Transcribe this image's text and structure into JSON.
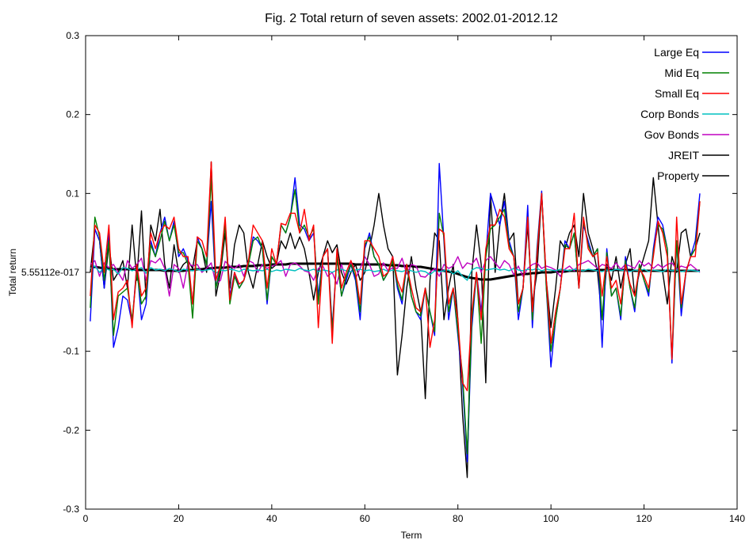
{
  "chart_data": {
    "type": "line",
    "title": "Fig. 2  Total return of seven assets: 2002.01-2012.12",
    "xlabel": "Term",
    "ylabel": "Total return",
    "xlim": [
      0,
      140
    ],
    "ylim": [
      -0.3,
      0.3
    ],
    "x_ticks": [
      0,
      20,
      40,
      60,
      80,
      100,
      120,
      140
    ],
    "y_ticks": [
      -0.3,
      -0.2,
      -0.1,
      0,
      0.1,
      0.2,
      0.3
    ],
    "x_tick_labels": [
      "0",
      "20",
      "40",
      "60",
      "80",
      "100",
      "120",
      "140"
    ],
    "y_tick_labels": [
      "-0.3",
      "-0.2",
      "-0.1",
      "5.55112e-017",
      "0.1",
      "0.2",
      "0.3"
    ],
    "grid": false,
    "legend_position": "top-right",
    "x": [
      1,
      2,
      3,
      4,
      5,
      6,
      7,
      8,
      9,
      10,
      11,
      12,
      13,
      14,
      15,
      16,
      17,
      18,
      19,
      20,
      21,
      22,
      23,
      24,
      25,
      26,
      27,
      28,
      29,
      30,
      31,
      32,
      33,
      34,
      35,
      36,
      37,
      38,
      39,
      40,
      41,
      42,
      43,
      44,
      45,
      46,
      47,
      48,
      49,
      50,
      51,
      52,
      53,
      54,
      55,
      56,
      57,
      58,
      59,
      60,
      61,
      62,
      63,
      64,
      65,
      66,
      67,
      68,
      69,
      70,
      71,
      72,
      73,
      74,
      75,
      76,
      77,
      78,
      79,
      80,
      81,
      82,
      83,
      84,
      85,
      86,
      87,
      88,
      89,
      90,
      91,
      92,
      93,
      94,
      95,
      96,
      97,
      98,
      99,
      100,
      101,
      102,
      103,
      104,
      105,
      106,
      107,
      108,
      109,
      110,
      111,
      112,
      113,
      114,
      115,
      116,
      117,
      118,
      119,
      120,
      121,
      122,
      123,
      124,
      125,
      126,
      127,
      128,
      129,
      130,
      131,
      132
    ],
    "series": [
      {
        "name": "Large Eq",
        "color": "#0000ff",
        "values": [
          -0.062,
          0.055,
          0.04,
          -0.02,
          0.05,
          -0.095,
          -0.07,
          -0.03,
          -0.035,
          -0.065,
          0.01,
          -0.06,
          -0.04,
          0.04,
          0.02,
          0.05,
          0.07,
          0.04,
          0.065,
          0.02,
          0.03,
          0.015,
          -0.04,
          0.045,
          0.03,
          0.01,
          0.09,
          -0.02,
          0.01,
          0.065,
          -0.03,
          0.0,
          -0.02,
          -0.01,
          0.01,
          0.045,
          0.04,
          0.03,
          -0.04,
          0.02,
          0.01,
          0.06,
          0.05,
          0.07,
          0.12,
          0.06,
          0.055,
          0.04,
          0.05,
          -0.03,
          0.02,
          0.03,
          -0.07,
          0.02,
          -0.03,
          -0.01,
          0.01,
          -0.01,
          -0.06,
          0.03,
          0.05,
          0.02,
          0.01,
          -0.01,
          0.0,
          0.02,
          -0.02,
          -0.04,
          0.01,
          -0.03,
          -0.05,
          -0.06,
          -0.02,
          -0.05,
          -0.08,
          0.138,
          0.04,
          -0.06,
          -0.02,
          -0.08,
          -0.14,
          -0.24,
          -0.07,
          0.0,
          -0.05,
          0.02,
          0.1,
          0.08,
          0.06,
          0.09,
          0.04,
          0.02,
          -0.06,
          -0.02,
          0.085,
          -0.07,
          0.03,
          0.103,
          -0.02,
          -0.12,
          -0.06,
          -0.02,
          0.04,
          0.03,
          0.05,
          -0.02,
          0.06,
          0.04,
          0.02,
          0.03,
          -0.095,
          0.03,
          -0.03,
          -0.02,
          -0.06,
          0.02,
          -0.02,
          -0.05,
          0.01,
          -0.01,
          -0.03,
          0.03,
          0.07,
          0.06,
          0.03,
          -0.115,
          0.04,
          -0.055,
          0.0,
          0.02,
          0.04,
          0.1
        ]
      },
      {
        "name": "Mid Eq",
        "color": "#008000",
        "values": [
          -0.045,
          0.07,
          0.045,
          -0.01,
          0.04,
          -0.08,
          -0.03,
          -0.025,
          -0.02,
          -0.06,
          0.0,
          -0.04,
          -0.03,
          0.035,
          0.02,
          0.04,
          0.065,
          0.04,
          0.06,
          0.025,
          0.025,
          0.01,
          -0.058,
          0.04,
          0.03,
          0.01,
          0.12,
          -0.02,
          0.005,
          0.06,
          -0.04,
          -0.005,
          -0.02,
          -0.01,
          0.01,
          0.04,
          0.045,
          0.03,
          -0.035,
          0.02,
          0.01,
          0.06,
          0.05,
          0.07,
          0.105,
          0.05,
          0.06,
          0.045,
          0.055,
          -0.04,
          0.02,
          0.03,
          -0.075,
          0.02,
          -0.03,
          -0.005,
          0.01,
          -0.005,
          -0.05,
          0.035,
          0.045,
          0.02,
          0.01,
          -0.01,
          0.0,
          0.015,
          -0.015,
          -0.035,
          0.01,
          -0.03,
          -0.05,
          -0.055,
          -0.02,
          -0.05,
          -0.075,
          0.075,
          0.045,
          -0.05,
          -0.02,
          -0.075,
          -0.13,
          -0.23,
          -0.06,
          0.0,
          -0.09,
          0.02,
          0.055,
          0.06,
          0.07,
          0.08,
          0.035,
          0.02,
          -0.05,
          -0.02,
          0.07,
          -0.06,
          0.025,
          0.1,
          -0.02,
          -0.1,
          -0.06,
          -0.02,
          0.035,
          0.03,
          0.05,
          -0.02,
          0.065,
          0.035,
          0.02,
          0.03,
          -0.06,
          0.025,
          -0.03,
          -0.02,
          -0.055,
          0.015,
          -0.02,
          -0.045,
          0.01,
          -0.01,
          -0.025,
          0.025,
          0.06,
          0.055,
          0.03,
          -0.11,
          0.04,
          -0.045,
          0.0,
          0.02,
          0.03,
          0.09
        ]
      },
      {
        "name": "Small Eq",
        "color": "#ff0000",
        "values": [
          -0.03,
          0.06,
          0.05,
          0.0,
          0.06,
          -0.06,
          -0.025,
          -0.02,
          -0.01,
          -0.07,
          0.01,
          -0.03,
          -0.02,
          0.05,
          0.03,
          0.05,
          0.06,
          0.055,
          0.07,
          0.03,
          0.02,
          0.02,
          -0.04,
          0.045,
          0.04,
          0.02,
          0.14,
          -0.01,
          0.01,
          0.07,
          -0.035,
          0.0,
          -0.015,
          -0.01,
          0.015,
          0.06,
          0.05,
          0.04,
          -0.02,
          0.03,
          0.01,
          0.062,
          0.06,
          0.075,
          0.075,
          0.05,
          0.08,
          0.04,
          0.06,
          -0.07,
          0.02,
          0.03,
          -0.09,
          0.03,
          -0.02,
          0.0,
          0.015,
          0.0,
          -0.04,
          0.04,
          0.04,
          0.03,
          0.02,
          -0.005,
          0.0,
          0.02,
          -0.01,
          -0.025,
          0.01,
          -0.02,
          -0.045,
          -0.05,
          -0.02,
          -0.095,
          -0.06,
          0.055,
          0.05,
          -0.04,
          -0.02,
          -0.06,
          -0.14,
          -0.15,
          -0.05,
          0.0,
          -0.06,
          0.03,
          0.06,
          0.06,
          0.08,
          0.07,
          0.03,
          0.02,
          -0.04,
          -0.02,
          0.07,
          -0.05,
          0.02,
          0.1,
          -0.01,
          -0.09,
          -0.05,
          -0.02,
          0.03,
          0.03,
          0.075,
          -0.02,
          0.07,
          0.03,
          0.02,
          0.025,
          -0.03,
          0.02,
          -0.02,
          -0.01,
          -0.04,
          0.01,
          -0.015,
          -0.03,
          0.005,
          -0.005,
          -0.02,
          0.02,
          0.065,
          0.05,
          0.02,
          -0.11,
          0.07,
          -0.04,
          0.0,
          0.02,
          0.02,
          0.09
        ]
      },
      {
        "name": "Corp Bonds",
        "color": "#00c0c0",
        "values": [
          0.005,
          0.008,
          0.0,
          0.006,
          0.003,
          0.004,
          -0.002,
          0.006,
          0.005,
          0.002,
          0.004,
          0.006,
          -0.001,
          0.006,
          0.003,
          0.004,
          0.002,
          0.005,
          0.003,
          0.001,
          0.004,
          0.003,
          0.002,
          0.004,
          0.002,
          0.003,
          0.004,
          -0.001,
          0.003,
          0.002,
          0.004,
          0.003,
          0.001,
          0.004,
          0.003,
          0.002,
          0.003,
          0.002,
          0.004,
          0.001,
          0.003,
          0.002,
          0.004,
          0.003,
          0.002,
          0.005,
          0.003,
          0.002,
          0.004,
          0.001,
          0.003,
          0.002,
          0.0,
          0.003,
          0.004,
          0.002,
          0.001,
          0.003,
          0.004,
          0.002,
          0.003,
          0.001,
          0.002,
          0.004,
          0.001,
          0.003,
          0.002,
          0.001,
          0.003,
          0.002,
          0.0,
          0.002,
          0.001,
          -0.003,
          0.002,
          0.001,
          0.002,
          0.003,
          -0.002,
          0.002,
          -0.005,
          -0.01,
          0.003,
          0.006,
          0.005,
          0.003,
          0.004,
          0.005,
          0.003,
          0.004,
          0.002,
          0.005,
          0.003,
          0.002,
          0.004,
          0.003,
          0.005,
          0.002,
          0.004,
          0.003,
          0.002,
          0.004,
          0.003,
          0.002,
          0.004,
          0.003,
          0.002,
          0.004,
          0.003,
          0.002,
          0.001,
          0.003,
          0.002,
          0.004,
          0.003,
          0.002,
          0.001,
          0.003,
          0.002,
          0.004,
          0.001,
          0.003,
          0.002,
          0.001,
          0.004,
          0.002,
          0.003,
          0.001,
          0.002,
          0.003,
          0.002,
          0.001
        ]
      },
      {
        "name": "Gov Bonds",
        "color": "#c000c0",
        "values": [
          0.01,
          0.015,
          -0.005,
          0.012,
          0.006,
          0.01,
          0.0,
          -0.01,
          0.015,
          0.005,
          0.01,
          0.018,
          -0.01,
          0.015,
          0.012,
          0.018,
          0.005,
          -0.03,
          0.01,
          0.005,
          -0.02,
          0.012,
          0.008,
          0.01,
          0.0,
          0.005,
          0.012,
          -0.015,
          -0.01,
          0.014,
          0.008,
          0.005,
          0.01,
          -0.005,
          0.015,
          0.012,
          0.0,
          0.01,
          0.005,
          0.008,
          0.01,
          0.015,
          -0.005,
          0.01,
          0.012,
          0.008,
          0.002,
          0.0,
          -0.01,
          0.005,
          0.008,
          -0.005,
          0.0,
          -0.015,
          0.01,
          -0.01,
          0.015,
          -0.008,
          0.005,
          0.02,
          0.01,
          -0.005,
          -0.002,
          0.012,
          0.002,
          0.006,
          0.005,
          0.018,
          -0.002,
          0.01,
          0.008,
          -0.005,
          -0.006,
          0.0,
          0.005,
          -0.005,
          0.01,
          0.005,
          0.008,
          0.02,
          0.005,
          0.012,
          0.01,
          0.018,
          0.0,
          0.015,
          0.02,
          0.012,
          0.005,
          0.015,
          0.01,
          -0.003,
          0.008,
          -0.005,
          0.005,
          0.01,
          0.012,
          0.005,
          0.008,
          0.006,
          0.003,
          -0.005,
          0.004,
          0.008,
          0.002,
          0.01,
          0.012,
          0.015,
          0.01,
          0.005,
          0.01,
          0.008,
          0.005,
          0.012,
          0.004,
          0.01,
          0.008,
          0.005,
          0.015,
          0.008,
          0.012,
          0.005,
          0.01,
          0.006,
          0.01,
          0.012,
          0.004,
          0.008,
          0.006,
          0.01,
          0.005,
          0.0
        ]
      },
      {
        "name": "JREIT",
        "color": "#000000",
        "values": [
          0.0,
          0.055,
          0.04,
          -0.02,
          0.035,
          -0.01,
          0.0,
          0.015,
          -0.02,
          0.06,
          -0.01,
          0.078,
          -0.035,
          0.06,
          0.04,
          0.08,
          0.01,
          -0.02,
          0.035,
          0.0,
          0.01,
          0.015,
          0.005,
          0.04,
          0.03,
          0.0,
          0.14,
          -0.03,
          0.0,
          0.05,
          -0.02,
          0.035,
          0.06,
          0.05,
          0.0,
          -0.02,
          0.01,
          0.04,
          0.02,
          0.005,
          0.01,
          0.04,
          0.03,
          0.05,
          0.03,
          0.045,
          0.03,
          0.0,
          -0.035,
          0.0,
          0.02,
          0.04,
          0.025,
          0.035,
          0.0,
          -0.015,
          0.0,
          0.01,
          -0.01,
          0.0,
          0.03,
          0.06,
          0.1,
          0.06,
          0.03,
          0.02,
          -0.13,
          -0.08,
          -0.02,
          0.02,
          -0.02,
          -0.05,
          -0.16,
          -0.01,
          0.05,
          0.04,
          -0.06,
          -0.02,
          0.01,
          -0.06,
          -0.18,
          -0.26,
          0.0,
          0.06,
          0.01,
          -0.14,
          0.1,
          0.0,
          0.06,
          0.1,
          0.04,
          0.05,
          -0.04,
          -0.02,
          0.06,
          -0.04,
          0.0,
          0.1,
          -0.01,
          -0.07,
          -0.02,
          0.04,
          0.03,
          0.05,
          0.06,
          0.02,
          0.1,
          0.05,
          0.03,
          0.0,
          -0.06,
          0.01,
          -0.01,
          0.02,
          -0.02,
          0.01,
          0.03,
          -0.03,
          0.0,
          0.02,
          0.04,
          0.12,
          0.06,
          0.0,
          -0.04,
          0.02,
          0.0,
          0.05,
          0.055,
          0.02,
          0.03,
          0.05
        ]
      },
      {
        "name": "Property",
        "color": "#000000",
        "values": [
          0.006,
          0.007,
          0.006,
          0.005,
          0.005,
          0.004,
          0.004,
          0.004,
          0.004,
          0.004,
          0.003,
          0.003,
          0.003,
          0.003,
          0.003,
          0.003,
          0.002,
          0.002,
          0.002,
          0.002,
          0.002,
          0.003,
          0.003,
          0.004,
          0.004,
          0.005,
          0.005,
          0.006,
          0.006,
          0.006,
          0.007,
          0.007,
          0.007,
          0.008,
          0.008,
          0.008,
          0.009,
          0.009,
          0.009,
          0.01,
          0.01,
          0.01,
          0.01,
          0.011,
          0.011,
          0.011,
          0.011,
          0.011,
          0.011,
          0.011,
          0.011,
          0.011,
          0.011,
          0.011,
          0.011,
          0.011,
          0.011,
          0.01,
          0.01,
          0.01,
          0.01,
          0.01,
          0.01,
          0.01,
          0.009,
          0.009,
          0.009,
          0.008,
          0.008,
          0.008,
          0.007,
          0.007,
          0.006,
          0.005,
          0.004,
          0.003,
          0.002,
          0.001,
          0.0,
          -0.002,
          -0.004,
          -0.006,
          -0.007,
          -0.008,
          -0.009,
          -0.009,
          -0.009,
          -0.008,
          -0.007,
          -0.006,
          -0.005,
          -0.004,
          -0.003,
          -0.002,
          -0.002,
          -0.001,
          -0.001,
          0.0,
          0.0,
          0.0,
          0.001,
          0.001,
          0.001,
          0.002,
          0.002,
          0.002,
          0.002,
          0.002,
          0.002,
          0.003,
          0.003,
          0.003,
          0.003,
          0.003,
          0.003,
          0.003,
          0.003,
          0.002,
          0.002,
          0.002,
          0.002,
          0.002,
          0.002,
          0.002,
          0.002,
          0.002,
          0.002,
          0.002,
          0.002,
          0.002,
          0.002,
          0.002
        ]
      }
    ]
  }
}
